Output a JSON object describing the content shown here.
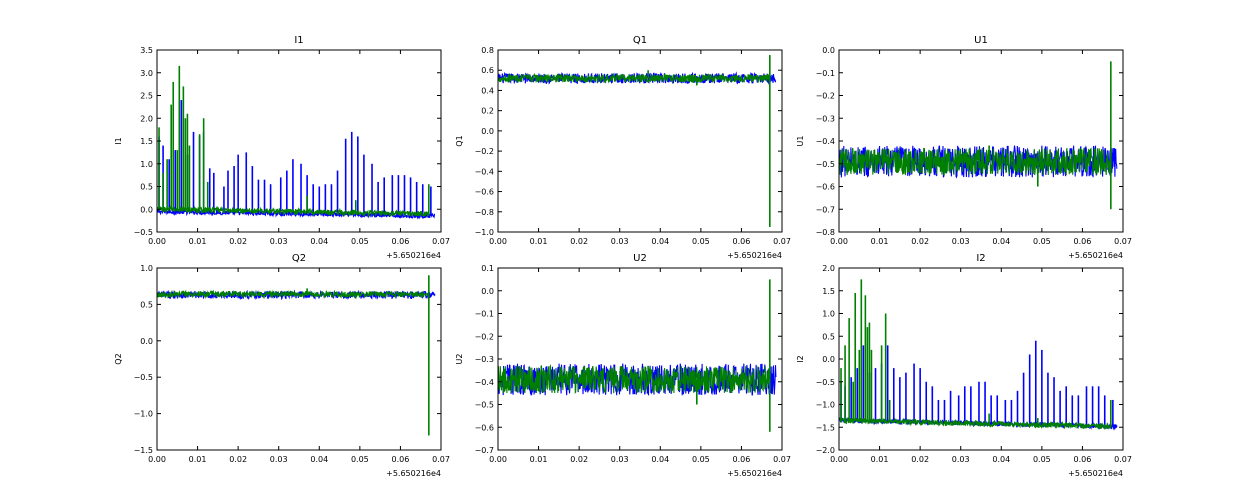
{
  "chart_data": [
    {
      "type": "line",
      "title": "I1",
      "ylabel": "I1",
      "xlim": [
        0.0,
        0.07
      ],
      "ylim": [
        -0.5,
        3.5
      ],
      "xticks": [
        0.0,
        0.01,
        0.02,
        0.03,
        0.04,
        0.05,
        0.06,
        0.07
      ],
      "xtick_labels": [
        "0.00",
        "0.01",
        "0.02",
        "0.03",
        "0.04",
        "0.05",
        "0.06",
        "0.07"
      ],
      "yticks": [
        -0.5,
        0.0,
        0.5,
        1.0,
        1.5,
        2.0,
        2.5,
        3.0,
        3.5
      ],
      "ytick_labels": [
        "−0.5",
        "0.0",
        "0.5",
        "1.0",
        "1.5",
        "2.0",
        "2.5",
        "3.0",
        "3.5"
      ],
      "x_offset_label": "+5.650216e4",
      "series": [
        {
          "color": "#0000ff",
          "x_range": [
            0.0,
            0.0685
          ],
          "baseline_start": -0.05,
          "baseline_end": -0.15,
          "noise": 0.05,
          "spikes": [
            [
              0.0005,
              1.6
            ],
            [
              0.0015,
              1.4
            ],
            [
              0.003,
              1.1
            ],
            [
              0.0045,
              1.3
            ],
            [
              0.006,
              2.4
            ],
            [
              0.0075,
              1.2
            ],
            [
              0.009,
              1.7
            ],
            [
              0.0105,
              1.6
            ],
            [
              0.0115,
              1.7
            ],
            [
              0.013,
              0.9
            ],
            [
              0.014,
              0.8
            ],
            [
              0.0165,
              0.5
            ],
            [
              0.0175,
              0.85
            ],
            [
              0.019,
              0.95
            ],
            [
              0.02,
              1.2
            ],
            [
              0.022,
              1.25
            ],
            [
              0.0235,
              0.95
            ],
            [
              0.025,
              0.65
            ],
            [
              0.0265,
              0.65
            ],
            [
              0.028,
              0.55
            ],
            [
              0.0305,
              0.7
            ],
            [
              0.032,
              0.85
            ],
            [
              0.0335,
              1.1
            ],
            [
              0.0355,
              1.0
            ],
            [
              0.037,
              0.75
            ],
            [
              0.0385,
              0.55
            ],
            [
              0.04,
              0.5
            ],
            [
              0.0415,
              0.55
            ],
            [
              0.043,
              0.55
            ],
            [
              0.0445,
              0.85
            ],
            [
              0.0465,
              1.55
            ],
            [
              0.048,
              1.7
            ],
            [
              0.0495,
              1.6
            ],
            [
              0.051,
              1.2
            ],
            [
              0.053,
              1.0
            ],
            [
              0.0545,
              0.6
            ],
            [
              0.056,
              0.7
            ],
            [
              0.058,
              0.75
            ],
            [
              0.0595,
              0.75
            ],
            [
              0.061,
              0.75
            ],
            [
              0.0625,
              0.7
            ],
            [
              0.064,
              0.6
            ],
            [
              0.0655,
              0.55
            ],
            [
              0.0675,
              0.5
            ]
          ]
        },
        {
          "color": "#008000",
          "x_range": [
            0.0,
            0.067
          ],
          "baseline_start": 0.0,
          "baseline_end": -0.1,
          "noise": 0.06,
          "spikes": [
            [
              0.0005,
              1.8
            ],
            [
              0.0015,
              0.8
            ],
            [
              0.0025,
              1.1
            ],
            [
              0.0035,
              2.3
            ],
            [
              0.004,
              2.8
            ],
            [
              0.005,
              1.3
            ],
            [
              0.0055,
              3.15
            ],
            [
              0.0065,
              2.7
            ],
            [
              0.007,
              2.0
            ],
            [
              0.0075,
              2.1
            ],
            [
              0.008,
              1.4
            ],
            [
              0.0105,
              1.65
            ],
            [
              0.0115,
              2.0
            ],
            [
              0.0125,
              0.6
            ],
            [
              0.037,
              0.3
            ],
            [
              0.049,
              0.2
            ],
            [
              0.067,
              0.55
            ]
          ]
        }
      ]
    },
    {
      "type": "line",
      "title": "Q1",
      "ylabel": "Q1",
      "xlim": [
        0.0,
        0.07
      ],
      "ylim": [
        -1.0,
        0.8
      ],
      "xticks": [
        0.0,
        0.01,
        0.02,
        0.03,
        0.04,
        0.05,
        0.06,
        0.07
      ],
      "xtick_labels": [
        "0.00",
        "0.01",
        "0.02",
        "0.03",
        "0.04",
        "0.05",
        "0.06",
        "0.07"
      ],
      "yticks": [
        -1.0,
        -0.8,
        -0.6,
        -0.4,
        -0.2,
        0.0,
        0.2,
        0.4,
        0.6,
        0.8
      ],
      "ytick_labels": [
        "−1.0",
        "−0.8",
        "−0.6",
        "−0.4",
        "−0.2",
        "0.0",
        "0.2",
        "0.4",
        "0.6",
        "0.8"
      ],
      "x_offset_label": "+5.650216e4",
      "series": [
        {
          "color": "#0000ff",
          "x_range": [
            0.0,
            0.0685
          ],
          "baseline_start": 0.52,
          "baseline_end": 0.52,
          "noise": 0.05,
          "spikes": []
        },
        {
          "color": "#008000",
          "x_range": [
            0.0,
            0.067
          ],
          "baseline_start": 0.52,
          "baseline_end": 0.52,
          "noise": 0.04,
          "spikes": [
            [
              0.037,
              0.6
            ],
            [
              0.049,
              0.45
            ],
            [
              0.067,
              -0.95
            ],
            [
              0.067,
              0.75
            ]
          ]
        }
      ]
    },
    {
      "type": "line",
      "title": "U1",
      "ylabel": "U1",
      "xlim": [
        0.0,
        0.07
      ],
      "ylim": [
        -0.8,
        0.0
      ],
      "xticks": [
        0.0,
        0.01,
        0.02,
        0.03,
        0.04,
        0.05,
        0.06,
        0.07
      ],
      "xtick_labels": [
        "0.00",
        "0.01",
        "0.02",
        "0.03",
        "0.04",
        "0.05",
        "0.06",
        "0.07"
      ],
      "yticks": [
        -0.8,
        -0.7,
        -0.6,
        -0.5,
        -0.4,
        -0.3,
        -0.2,
        -0.1,
        0.0
      ],
      "ytick_labels": [
        "−0.8",
        "−0.7",
        "−0.6",
        "−0.5",
        "−0.4",
        "−0.3",
        "−0.2",
        "−0.1",
        "0.0"
      ],
      "x_offset_label": "+5.650216e4",
      "series": [
        {
          "color": "#0000ff",
          "x_range": [
            0.0,
            0.0685
          ],
          "baseline_start": -0.49,
          "baseline_end": -0.49,
          "noise": 0.07,
          "spikes": []
        },
        {
          "color": "#008000",
          "x_range": [
            0.0,
            0.067
          ],
          "baseline_start": -0.49,
          "baseline_end": -0.49,
          "noise": 0.06,
          "spikes": [
            [
              0.037,
              -0.42
            ],
            [
              0.049,
              -0.6
            ],
            [
              0.067,
              -0.7
            ],
            [
              0.067,
              -0.05
            ]
          ]
        }
      ]
    },
    {
      "type": "line",
      "title": "Q2",
      "ylabel": "Q2",
      "xlim": [
        0.0,
        0.07
      ],
      "ylim": [
        -1.5,
        1.0
      ],
      "xticks": [
        0.0,
        0.01,
        0.02,
        0.03,
        0.04,
        0.05,
        0.06,
        0.07
      ],
      "xtick_labels": [
        "0.00",
        "0.01",
        "0.02",
        "0.03",
        "0.04",
        "0.05",
        "0.06",
        "0.07"
      ],
      "yticks": [
        -1.5,
        -1.0,
        -0.5,
        0.0,
        0.5,
        1.0
      ],
      "ytick_labels": [
        "−1.5",
        "−1.0",
        "−0.5",
        "0.0",
        "0.5",
        "1.0"
      ],
      "x_offset_label": "+5.650216e4",
      "series": [
        {
          "color": "#0000ff",
          "x_range": [
            0.0,
            0.0685
          ],
          "baseline_start": 0.63,
          "baseline_end": 0.63,
          "noise": 0.05,
          "spikes": []
        },
        {
          "color": "#008000",
          "x_range": [
            0.0,
            0.067
          ],
          "baseline_start": 0.64,
          "baseline_end": 0.64,
          "noise": 0.04,
          "spikes": [
            [
              0.037,
              0.72
            ],
            [
              0.049,
              0.58
            ],
            [
              0.067,
              -1.3
            ],
            [
              0.067,
              0.9
            ]
          ]
        }
      ]
    },
    {
      "type": "line",
      "title": "U2",
      "ylabel": "U2",
      "xlim": [
        0.0,
        0.07
      ],
      "ylim": [
        -0.7,
        0.1
      ],
      "xticks": [
        0.0,
        0.01,
        0.02,
        0.03,
        0.04,
        0.05,
        0.06,
        0.07
      ],
      "xtick_labels": [
        "0.00",
        "0.01",
        "0.02",
        "0.03",
        "0.04",
        "0.05",
        "0.06",
        "0.07"
      ],
      "yticks": [
        -0.7,
        -0.6,
        -0.5,
        -0.4,
        -0.3,
        -0.2,
        -0.1,
        0.0,
        0.1
      ],
      "ytick_labels": [
        "−0.7",
        "−0.6",
        "−0.5",
        "−0.4",
        "−0.3",
        "−0.2",
        "−0.1",
        "0.0",
        "0.1"
      ],
      "x_offset_label": "+5.650216e4",
      "series": [
        {
          "color": "#0000ff",
          "x_range": [
            0.0,
            0.0685
          ],
          "baseline_start": -0.39,
          "baseline_end": -0.39,
          "noise": 0.07,
          "spikes": []
        },
        {
          "color": "#008000",
          "x_range": [
            0.0,
            0.067
          ],
          "baseline_start": -0.39,
          "baseline_end": -0.39,
          "noise": 0.06,
          "spikes": [
            [
              0.037,
              -0.33
            ],
            [
              0.049,
              -0.5
            ],
            [
              0.067,
              -0.62
            ],
            [
              0.067,
              0.05
            ]
          ]
        }
      ]
    },
    {
      "type": "line",
      "title": "I2",
      "ylabel": "I2",
      "xlim": [
        0.0,
        0.07
      ],
      "ylim": [
        -2.0,
        2.0
      ],
      "xticks": [
        0.0,
        0.01,
        0.02,
        0.03,
        0.04,
        0.05,
        0.06,
        0.07
      ],
      "xtick_labels": [
        "0.00",
        "0.01",
        "0.02",
        "0.03",
        "0.04",
        "0.05",
        "0.06",
        "0.07"
      ],
      "yticks": [
        -2.0,
        -1.5,
        -1.0,
        -0.5,
        0.0,
        0.5,
        1.0,
        1.5,
        2.0
      ],
      "ytick_labels": [
        "−2.0",
        "−1.5",
        "−1.0",
        "−0.5",
        "0.0",
        "0.5",
        "1.0",
        "1.5",
        "2.0"
      ],
      "x_offset_label": "+5.650216e4",
      "series": [
        {
          "color": "#0000ff",
          "x_range": [
            0.0,
            0.0685
          ],
          "baseline_start": -1.35,
          "baseline_end": -1.48,
          "noise": 0.05,
          "spikes": [
            [
              0.0005,
              -0.5
            ],
            [
              0.0015,
              -0.6
            ],
            [
              0.003,
              -0.4
            ],
            [
              0.0045,
              -0.2
            ],
            [
              0.006,
              0.3
            ],
            [
              0.0075,
              -0.3
            ],
            [
              0.009,
              -0.2
            ],
            [
              0.0105,
              -0.1
            ],
            [
              0.012,
              0.3
            ],
            [
              0.0135,
              -0.2
            ],
            [
              0.015,
              -0.4
            ],
            [
              0.0165,
              -0.3
            ],
            [
              0.0185,
              -0.1
            ],
            [
              0.02,
              -0.2
            ],
            [
              0.0215,
              -0.5
            ],
            [
              0.023,
              -0.6
            ],
            [
              0.0245,
              -0.9
            ],
            [
              0.026,
              -0.9
            ],
            [
              0.0275,
              -0.7
            ],
            [
              0.0295,
              -0.8
            ],
            [
              0.031,
              -0.6
            ],
            [
              0.0325,
              -0.6
            ],
            [
              0.0345,
              -0.5
            ],
            [
              0.036,
              -0.5
            ],
            [
              0.0375,
              -0.8
            ],
            [
              0.039,
              -0.8
            ],
            [
              0.041,
              -0.9
            ],
            [
              0.0425,
              -0.9
            ],
            [
              0.044,
              -0.7
            ],
            [
              0.0455,
              -0.3
            ],
            [
              0.047,
              0.1
            ],
            [
              0.0485,
              0.4
            ],
            [
              0.05,
              0.2
            ],
            [
              0.0515,
              -0.3
            ],
            [
              0.053,
              -0.4
            ],
            [
              0.0545,
              -0.7
            ],
            [
              0.056,
              -0.6
            ],
            [
              0.0575,
              -0.8
            ],
            [
              0.059,
              -0.8
            ],
            [
              0.061,
              -0.6
            ],
            [
              0.0625,
              -0.6
            ],
            [
              0.064,
              -0.6
            ],
            [
              0.0655,
              -0.8
            ],
            [
              0.0675,
              -0.9
            ]
          ]
        },
        {
          "color": "#008000",
          "x_range": [
            0.0,
            0.067
          ],
          "baseline_start": -1.35,
          "baseline_end": -1.48,
          "noise": 0.06,
          "spikes": [
            [
              0.0005,
              -0.2
            ],
            [
              0.0015,
              0.3
            ],
            [
              0.0025,
              0.9
            ],
            [
              0.0035,
              -0.5
            ],
            [
              0.004,
              1.45
            ],
            [
              0.005,
              0.2
            ],
            [
              0.0055,
              1.75
            ],
            [
              0.0065,
              1.4
            ],
            [
              0.007,
              0.7
            ],
            [
              0.0075,
              0.8
            ],
            [
              0.008,
              0.2
            ],
            [
              0.0105,
              0.3
            ],
            [
              0.0115,
              1.0
            ],
            [
              0.0125,
              -0.9
            ],
            [
              0.037,
              -1.2
            ],
            [
              0.049,
              -1.3
            ],
            [
              0.067,
              -0.9
            ]
          ]
        }
      ]
    }
  ]
}
